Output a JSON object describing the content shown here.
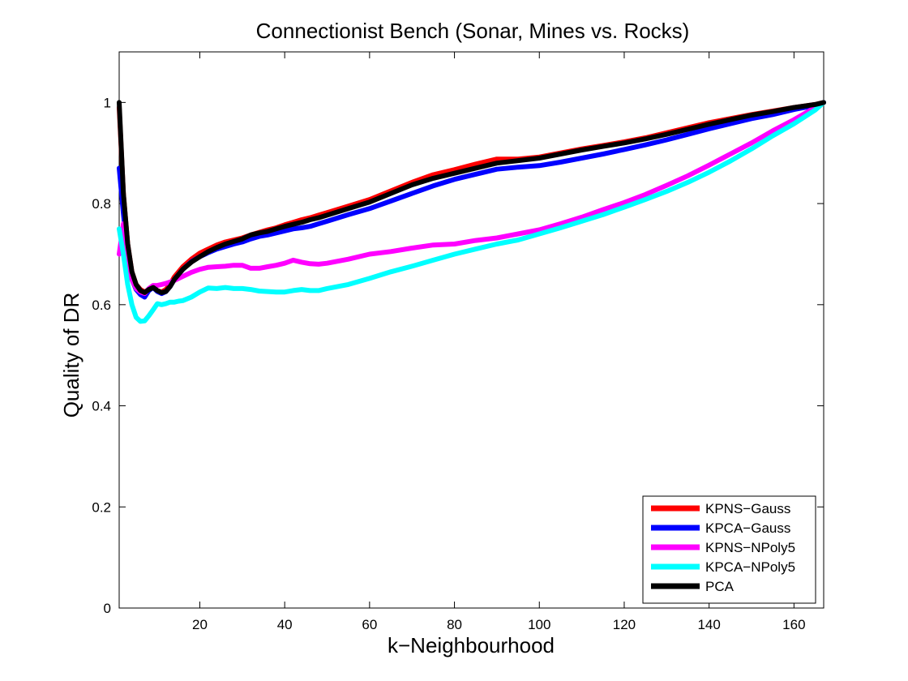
{
  "chart_data": {
    "type": "line",
    "title": "Connectionist Bench (Sonar, Mines vs. Rocks)",
    "xlabel": "k−Neighbourhood",
    "ylabel": "Quality of DR",
    "xlim": [
      1,
      167
    ],
    "ylim": [
      0,
      1.1
    ],
    "xticks": [
      20,
      40,
      60,
      80,
      100,
      120,
      140,
      160
    ],
    "yticks": [
      0,
      0.2,
      0.4,
      0.6,
      0.8,
      1
    ],
    "ytick_labels": [
      "0",
      "0.2",
      "0.4",
      "0.6",
      "0.8",
      "1"
    ],
    "legend_position": "bottom-right",
    "series": [
      {
        "name": "KPNS−Gauss",
        "color": "#ff0000",
        "x": [
          1,
          2,
          3,
          4,
          5,
          6,
          7,
          8,
          9,
          10,
          11,
          12,
          13,
          14,
          15,
          16,
          18,
          20,
          22,
          24,
          26,
          28,
          30,
          32,
          34,
          36,
          38,
          40,
          42,
          44,
          46,
          48,
          50,
          55,
          60,
          65,
          70,
          75,
          80,
          85,
          90,
          95,
          100,
          105,
          110,
          115,
          120,
          125,
          130,
          135,
          140,
          145,
          150,
          155,
          160,
          165,
          167
        ],
        "y": [
          0.99,
          0.82,
          0.72,
          0.665,
          0.64,
          0.63,
          0.625,
          0.63,
          0.634,
          0.628,
          0.625,
          0.63,
          0.64,
          0.655,
          0.665,
          0.675,
          0.69,
          0.702,
          0.71,
          0.718,
          0.724,
          0.728,
          0.732,
          0.738,
          0.743,
          0.748,
          0.752,
          0.758,
          0.763,
          0.768,
          0.772,
          0.777,
          0.782,
          0.795,
          0.808,
          0.825,
          0.842,
          0.857,
          0.867,
          0.878,
          0.888,
          0.888,
          0.892,
          0.9,
          0.908,
          0.915,
          0.922,
          0.93,
          0.94,
          0.95,
          0.96,
          0.968,
          0.976,
          0.983,
          0.99,
          0.996,
          1.0
        ]
      },
      {
        "name": "KPCA−Gauss",
        "color": "#0000ff",
        "x": [
          1,
          2,
          3,
          4,
          5,
          6,
          7,
          8,
          9,
          10,
          11,
          12,
          13,
          14,
          15,
          16,
          18,
          20,
          22,
          24,
          26,
          28,
          30,
          32,
          34,
          36,
          38,
          40,
          42,
          44,
          46,
          48,
          50,
          55,
          60,
          65,
          70,
          75,
          80,
          85,
          90,
          95,
          100,
          105,
          110,
          115,
          120,
          125,
          130,
          135,
          140,
          145,
          150,
          155,
          160,
          165,
          167
        ],
        "y": [
          0.87,
          0.78,
          0.7,
          0.65,
          0.63,
          0.62,
          0.615,
          0.628,
          0.634,
          0.626,
          0.622,
          0.626,
          0.636,
          0.65,
          0.66,
          0.67,
          0.685,
          0.695,
          0.703,
          0.71,
          0.715,
          0.72,
          0.724,
          0.73,
          0.735,
          0.738,
          0.742,
          0.746,
          0.75,
          0.752,
          0.755,
          0.76,
          0.765,
          0.778,
          0.79,
          0.805,
          0.82,
          0.835,
          0.848,
          0.858,
          0.868,
          0.872,
          0.875,
          0.882,
          0.89,
          0.898,
          0.907,
          0.916,
          0.926,
          0.937,
          0.948,
          0.958,
          0.968,
          0.976,
          0.986,
          0.994,
          1.0
        ]
      },
      {
        "name": "KPNS−NPoly5",
        "color": "#ff00ff",
        "x": [
          1,
          2,
          3,
          4,
          5,
          6,
          7,
          8,
          9,
          10,
          11,
          12,
          13,
          14,
          15,
          16,
          18,
          20,
          22,
          24,
          26,
          28,
          30,
          32,
          34,
          36,
          38,
          40,
          42,
          44,
          46,
          48,
          50,
          55,
          60,
          65,
          70,
          75,
          80,
          85,
          90,
          95,
          100,
          105,
          110,
          115,
          120,
          125,
          130,
          135,
          140,
          145,
          150,
          155,
          160,
          165,
          167
        ],
        "y": [
          0.7,
          0.76,
          0.69,
          0.65,
          0.632,
          0.625,
          0.622,
          0.632,
          0.638,
          0.638,
          0.64,
          0.642,
          0.645,
          0.648,
          0.652,
          0.656,
          0.664,
          0.67,
          0.674,
          0.675,
          0.676,
          0.678,
          0.678,
          0.672,
          0.672,
          0.675,
          0.678,
          0.682,
          0.688,
          0.684,
          0.681,
          0.68,
          0.682,
          0.69,
          0.7,
          0.705,
          0.712,
          0.718,
          0.72,
          0.727,
          0.732,
          0.74,
          0.748,
          0.76,
          0.773,
          0.788,
          0.802,
          0.818,
          0.836,
          0.855,
          0.876,
          0.898,
          0.92,
          0.944,
          0.966,
          0.99,
          1.0
        ]
      },
      {
        "name": "KPCA−NPoly5",
        "color": "#00ffff",
        "x": [
          1,
          2,
          3,
          4,
          5,
          6,
          7,
          8,
          9,
          10,
          11,
          12,
          13,
          14,
          15,
          16,
          18,
          20,
          22,
          24,
          26,
          28,
          30,
          32,
          34,
          36,
          38,
          40,
          42,
          44,
          46,
          48,
          50,
          55,
          60,
          65,
          70,
          75,
          80,
          85,
          90,
          95,
          100,
          105,
          110,
          115,
          120,
          125,
          130,
          135,
          140,
          145,
          150,
          155,
          160,
          165,
          167
        ],
        "y": [
          0.75,
          0.7,
          0.64,
          0.6,
          0.575,
          0.567,
          0.568,
          0.578,
          0.59,
          0.602,
          0.6,
          0.602,
          0.605,
          0.605,
          0.607,
          0.608,
          0.615,
          0.625,
          0.633,
          0.632,
          0.634,
          0.632,
          0.632,
          0.63,
          0.627,
          0.626,
          0.625,
          0.625,
          0.628,
          0.63,
          0.628,
          0.628,
          0.632,
          0.64,
          0.652,
          0.665,
          0.676,
          0.688,
          0.7,
          0.71,
          0.72,
          0.728,
          0.74,
          0.752,
          0.765,
          0.778,
          0.793,
          0.808,
          0.824,
          0.842,
          0.862,
          0.884,
          0.908,
          0.934,
          0.958,
          0.985,
          1.0
        ]
      },
      {
        "name": "PCA",
        "color": "#000000",
        "x": [
          1,
          2,
          3,
          4,
          5,
          6,
          7,
          8,
          9,
          10,
          11,
          12,
          13,
          14,
          15,
          16,
          18,
          20,
          22,
          24,
          26,
          28,
          30,
          32,
          34,
          36,
          38,
          40,
          42,
          44,
          46,
          48,
          50,
          55,
          60,
          65,
          70,
          75,
          80,
          85,
          90,
          95,
          100,
          105,
          110,
          115,
          120,
          125,
          130,
          135,
          140,
          145,
          150,
          155,
          160,
          165,
          167
        ],
        "y": [
          1.0,
          0.82,
          0.72,
          0.665,
          0.64,
          0.628,
          0.624,
          0.63,
          0.634,
          0.628,
          0.624,
          0.626,
          0.636,
          0.65,
          0.66,
          0.67,
          0.684,
          0.695,
          0.705,
          0.713,
          0.72,
          0.725,
          0.73,
          0.738,
          0.742,
          0.745,
          0.75,
          0.755,
          0.759,
          0.763,
          0.768,
          0.772,
          0.777,
          0.79,
          0.803,
          0.82,
          0.837,
          0.85,
          0.86,
          0.87,
          0.88,
          0.885,
          0.89,
          0.898,
          0.906,
          0.913,
          0.92,
          0.928,
          0.937,
          0.947,
          0.957,
          0.966,
          0.975,
          0.982,
          0.99,
          0.996,
          1.0
        ]
      }
    ]
  }
}
